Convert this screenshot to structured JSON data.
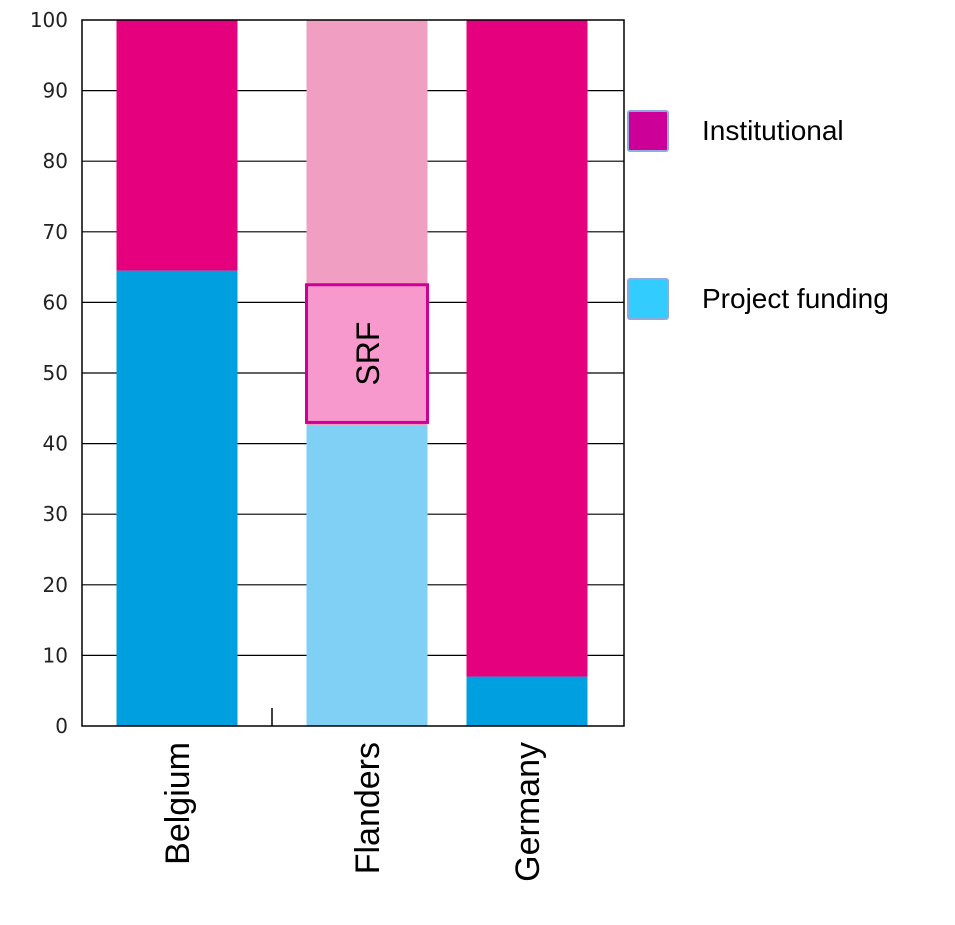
{
  "chart_data": {
    "type": "bar",
    "stacked": true,
    "categories": [
      "Belgium",
      "Flanders",
      "Germany"
    ],
    "series": [
      {
        "name": "Project funding",
        "values": [
          64.5,
          42.5,
          7
        ],
        "colors": [
          "#009fe0",
          "#80d0f5",
          "#009fe0"
        ]
      },
      {
        "name": "Institutional",
        "values": [
          35.5,
          57.5,
          93
        ],
        "colors": [
          "#e5007e",
          "#f19ec3",
          "#e5007e"
        ]
      }
    ],
    "ylim": [
      0,
      100
    ],
    "yticks": [
      0,
      10,
      20,
      30,
      40,
      50,
      60,
      70,
      80,
      90,
      100
    ],
    "grid": "horizontal",
    "legend": {
      "placement": "right",
      "entries": [
        {
          "label": "Institutional",
          "color": "#cc0099"
        },
        {
          "label": "Project funding",
          "color": "#33ccff"
        }
      ]
    },
    "annotation": {
      "text": "SRF",
      "category": "Flanders",
      "range": [
        43,
        62.5
      ],
      "fill": "#f799cc",
      "stroke": "#cc0099"
    },
    "title": "",
    "xlabel": "",
    "ylabel": ""
  }
}
